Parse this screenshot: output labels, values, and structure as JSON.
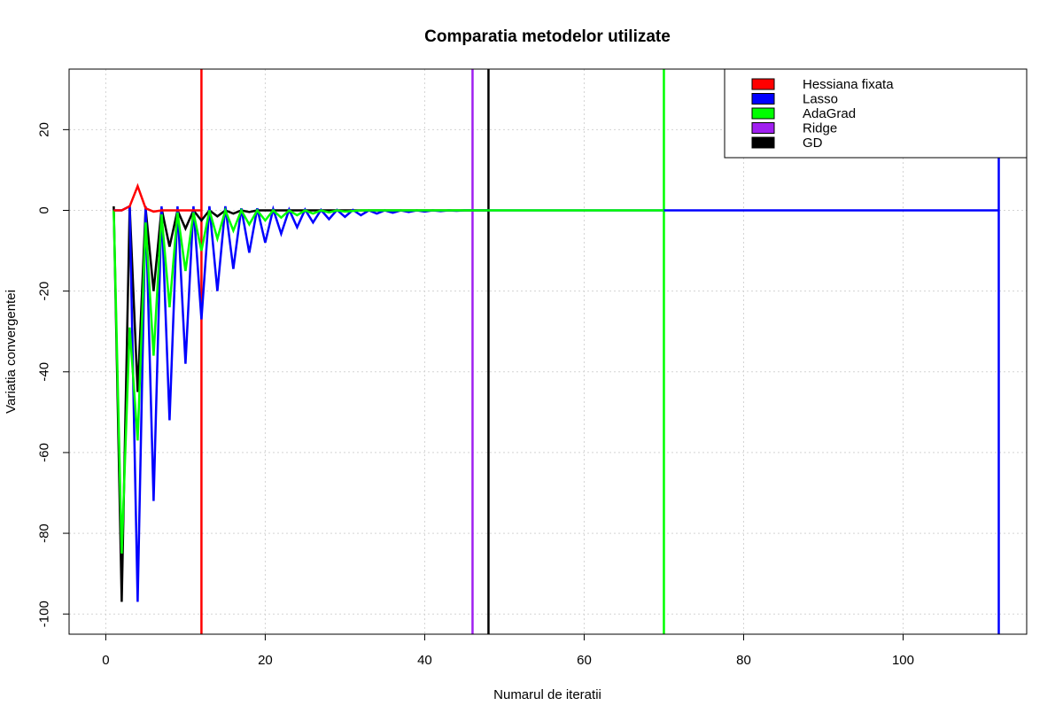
{
  "chart_data": {
    "type": "line",
    "title": "Comparatia metodelor utilizate",
    "xlabel": "Numarul de iteratii",
    "ylabel": "Variatia convergentei",
    "xlim": [
      -4.6,
      115.5
    ],
    "ylim": [
      -105,
      35
    ],
    "xticks": [
      0,
      20,
      40,
      60,
      80,
      100
    ],
    "yticks": [
      20,
      0,
      -20,
      -40,
      -60,
      -80,
      -100
    ],
    "grid": true,
    "legend_position": "top-right",
    "series": [
      {
        "name": "Hessiana fixata",
        "color": "#ff0000",
        "x": [
          1,
          2,
          3,
          4,
          5,
          6,
          7,
          8,
          9,
          10,
          11,
          12
        ],
        "y": [
          0,
          0,
          1,
          6,
          0.5,
          -0.3,
          0,
          0,
          0,
          0,
          0,
          0
        ],
        "stop_x": 12
      },
      {
        "name": "Lasso",
        "color": "#0000ff",
        "x": [
          1,
          2,
          3,
          4,
          5,
          6,
          7,
          8,
          9,
          10,
          11,
          12,
          13,
          14,
          15,
          16,
          17,
          18,
          19,
          20,
          21,
          22,
          23,
          24,
          25,
          26,
          27,
          28,
          29,
          30,
          31,
          32,
          33,
          34,
          35,
          36,
          37,
          38,
          39,
          40,
          41,
          42,
          43,
          44,
          45,
          46,
          47,
          48,
          50,
          60,
          70,
          80,
          90,
          100,
          110,
          112
        ],
        "y": [
          0,
          0,
          1,
          -97,
          1,
          -72,
          1,
          -52,
          1,
          -38,
          1,
          -27,
          1,
          -20,
          1,
          -14.5,
          0.5,
          -10.5,
          0.5,
          -8,
          0.3,
          -5.8,
          0.2,
          -4.2,
          0.2,
          -3,
          0.1,
          -2.2,
          0.1,
          -1.6,
          0.1,
          -1.2,
          0,
          -0.8,
          0,
          -0.6,
          0,
          -0.4,
          0,
          -0.3,
          0,
          -0.2,
          0,
          -0.1,
          0,
          0,
          0,
          0,
          0,
          0,
          0,
          0,
          0,
          0,
          0,
          0
        ],
        "stop_x": 112
      },
      {
        "name": "AdaGrad",
        "color": "#00ff00",
        "x": [
          1,
          2,
          3,
          4,
          5,
          6,
          7,
          8,
          9,
          10,
          11,
          12,
          13,
          14,
          15,
          16,
          17,
          18,
          19,
          20,
          21,
          22,
          23,
          24,
          25,
          26,
          27,
          28,
          29,
          30,
          32,
          34,
          36,
          40,
          50,
          60,
          70
        ],
        "y": [
          0,
          -85,
          -29,
          -57,
          -3,
          -36,
          -1,
          -24,
          -0.5,
          -15,
          -0.5,
          -10,
          0,
          -7,
          0,
          -5,
          0,
          -3.5,
          0,
          -2.5,
          0,
          -1.8,
          0,
          -1.2,
          0,
          -0.8,
          0,
          -0.5,
          0,
          -0.3,
          0,
          0,
          0,
          0,
          0,
          0,
          0
        ],
        "stop_x": 70
      },
      {
        "name": "Ridge",
        "color": "#a020f0",
        "x": [
          46
        ],
        "y": [
          0
        ],
        "stop_x": 46
      },
      {
        "name": "GD",
        "color": "#000000",
        "x": [
          1,
          2,
          3,
          4,
          5,
          6,
          7,
          8,
          9,
          10,
          11,
          12,
          13,
          14,
          15,
          16,
          17,
          18,
          19,
          20,
          25,
          30,
          40,
          48
        ],
        "y": [
          1,
          -97,
          1,
          -45,
          0.5,
          -20,
          0.5,
          -9,
          0,
          -4.5,
          0,
          -2.5,
          0,
          -1.5,
          0,
          -0.8,
          0,
          -0.4,
          0,
          0,
          0,
          0,
          0,
          0
        ],
        "stop_x": 48
      }
    ]
  }
}
